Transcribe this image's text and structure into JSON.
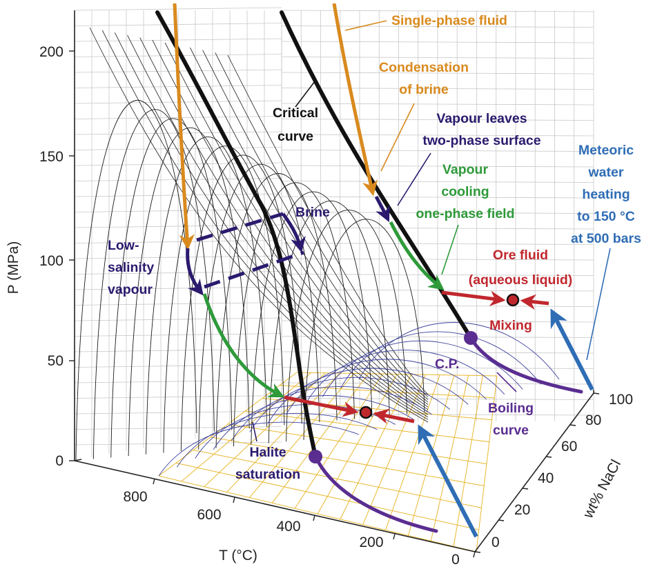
{
  "axes": {
    "pressure": {
      "label": "P (MPa)",
      "ticks": [
        "0",
        "50",
        "100",
        "150",
        "200"
      ]
    },
    "temperature": {
      "label": "T (°C)",
      "ticks": [
        "800",
        "600",
        "400",
        "200",
        "0"
      ]
    },
    "composition": {
      "label": "wt% NaCl",
      "ticks": [
        "0",
        "20",
        "40",
        "60",
        "80",
        "100"
      ]
    }
  },
  "labels": {
    "single_phase_fluid": "Single-phase fluid",
    "condensation_l1": "Condensation",
    "condensation_l2": "of brine",
    "critical_l1": "Critical",
    "critical_l2": "curve",
    "vapour_leaves_l1": "Vapour leaves",
    "vapour_leaves_l2": "two-phase surface",
    "meteoric_l1": "Meteoric",
    "meteoric_l2": "water",
    "meteoric_l3": "heating",
    "meteoric_l4": "to 150 °C",
    "meteoric_l5": "at 500 bars",
    "vapour_cooling_l1": "Vapour",
    "vapour_cooling_l2": "cooling",
    "vapour_cooling_l3": "one-phase field",
    "brine": "Brine",
    "low_salinity_l1": "Low-",
    "low_salinity_l2": "salinity",
    "low_salinity_l3": "vapour",
    "ore_fluid_l1": "Ore fluid",
    "ore_fluid_l2": "(aqueous liquid)",
    "mixing": "Mixing",
    "cp": "C.P.",
    "boiling_l1": "Boiling",
    "boiling_l2": "curve",
    "halite_l1": "Halite",
    "halite_l2": "saturation"
  },
  "colors": {
    "orange": "#d98a1e",
    "navy": "#2b1a6e",
    "green": "#2e9a3a",
    "red": "#c0272d",
    "blue": "#2f6db5",
    "purple": "#5a2d91",
    "black": "#111111",
    "grid": "#c8c8c8",
    "halite_grid": "#e8b830",
    "mesh": "#1a1a1a",
    "mesh_blue": "#3a3f9a"
  }
}
